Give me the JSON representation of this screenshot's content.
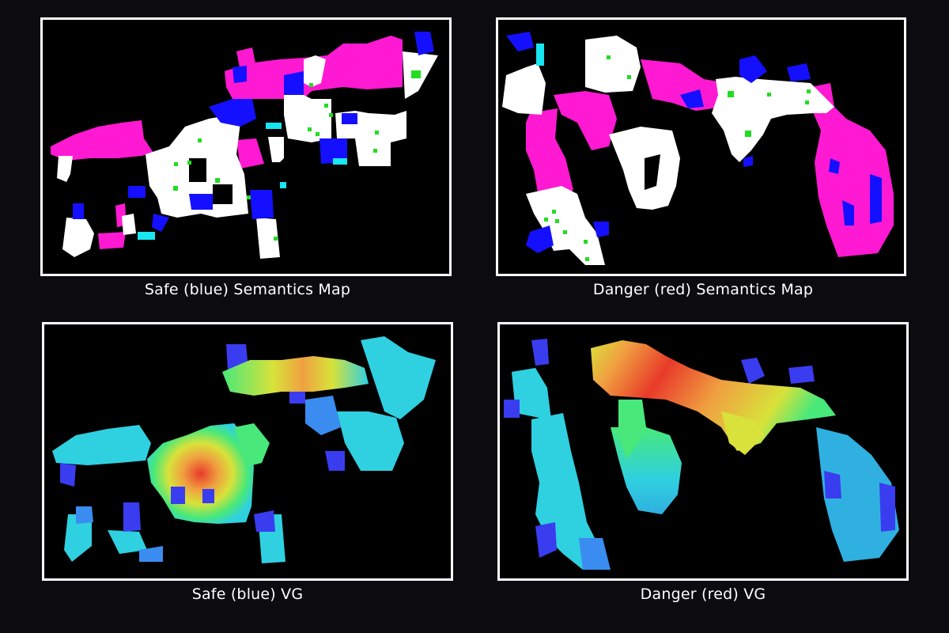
{
  "panels": [
    {
      "caption": "Safe (blue) Semantics Map",
      "kind": "semantics-map"
    },
    {
      "caption": "Danger (red) Semantics Map",
      "kind": "semantics-map"
    },
    {
      "caption": "Safe (blue) VG",
      "kind": "visibility-graph-heatmap"
    },
    {
      "caption": "Danger (red) VG",
      "kind": "visibility-graph-heatmap"
    }
  ],
  "colors": {
    "background": "#0c0b10",
    "panel_background": "#000000",
    "panel_border": "#ffffff",
    "semantic_white": "#ffffff",
    "semantic_magenta": "#ff19d2",
    "semantic_blue": "#1410ff",
    "semantic_cyan": "#18e6f0",
    "semantic_green": "#22dd22",
    "heat_low": "#3a3cf0",
    "heat_cyan": "#2fd0e0",
    "heat_green": "#48e87a",
    "heat_yellow": "#d8e23a",
    "heat_orange": "#f0a040",
    "heat_red": "#e83a2a"
  }
}
